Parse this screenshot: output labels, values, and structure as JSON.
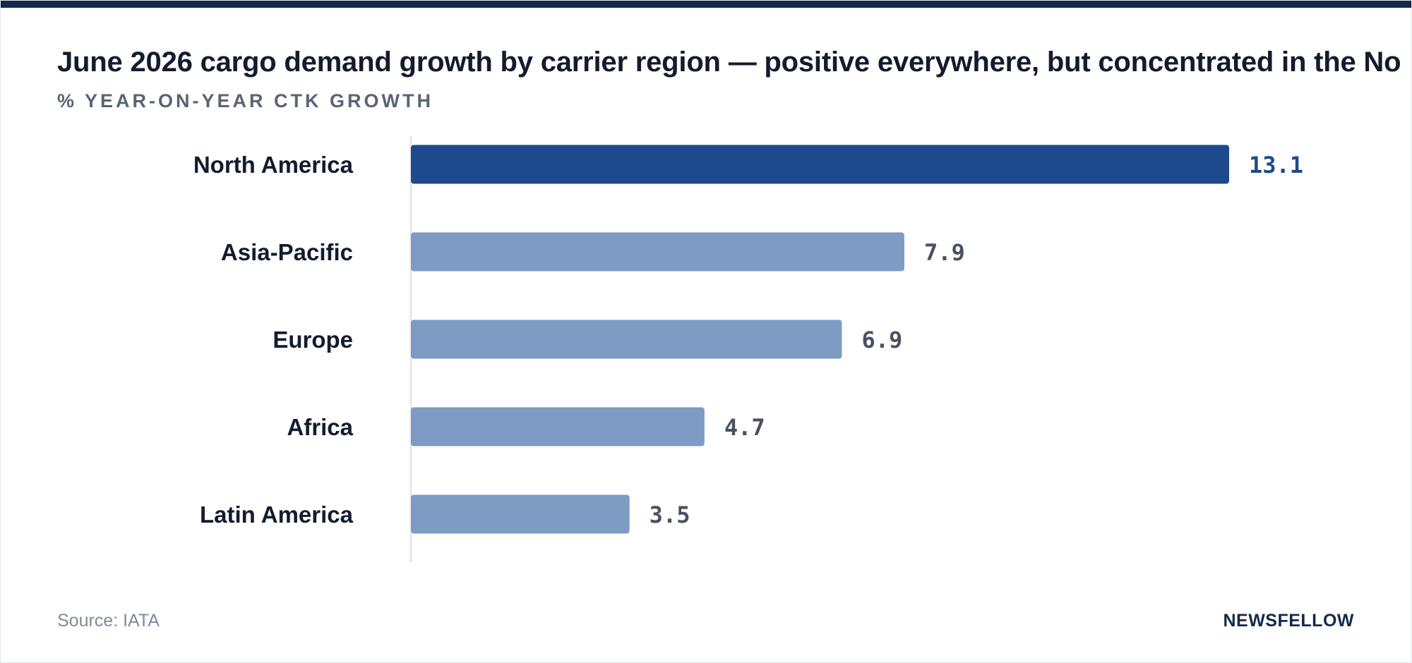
{
  "header": {
    "title": "June 2026 cargo demand growth by carrier region — positive everywhere, but concentrated in the No",
    "subtitle": "% YEAR-ON-YEAR CTK GROWTH"
  },
  "footer": {
    "source": "Source: IATA",
    "brand": "NEWSFELLOW"
  },
  "colors": {
    "highlight": "#1c4a8c",
    "muted": "#7e9bc4",
    "highlight_label": "#1c4a8c",
    "muted_label": "#4a5261",
    "axis": "#e5e7eb"
  },
  "chart_data": {
    "type": "bar",
    "orientation": "horizontal",
    "title": "June 2026 cargo demand growth by carrier region — positive everywhere, but concentrated in the No",
    "subtitle": "% YEAR-ON-YEAR CTK GROWTH",
    "categories": [
      "North America",
      "Asia-Pacific",
      "Europe",
      "Africa",
      "Latin America"
    ],
    "values": [
      13.1,
      7.9,
      6.9,
      4.7,
      3.5
    ],
    "value_labels": [
      "13.1",
      "7.9",
      "6.9",
      "4.7",
      "3.5"
    ],
    "highlighted": [
      "North America"
    ],
    "xlim": [
      0,
      13.1
    ],
    "grid": false
  }
}
